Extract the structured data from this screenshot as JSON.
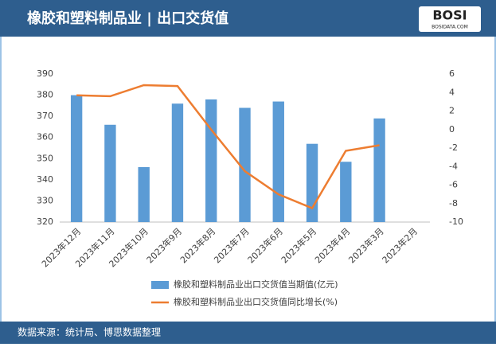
{
  "header": {
    "title": "橡胶和塑料制品业 | 出口交货值",
    "logo": "BOSI",
    "logo_sub": "BOSIDATA.COM"
  },
  "footer": {
    "source": "数据来源：统计局、博思数据整理"
  },
  "chart_data": {
    "type": "combo",
    "categories": [
      "2023年12月",
      "2023年11月",
      "2023年10月",
      "2023年9月",
      "2023年8月",
      "2023年7月",
      "2023年6月",
      "2023年5月",
      "2023年4月",
      "2023年3月",
      "2023年2月"
    ],
    "series": [
      {
        "name": "橡胶和塑料制品业出口交货值当期值(亿元)",
        "type": "bar",
        "color": "#5b9bd5",
        "axis": "y",
        "values": [
          380,
          366,
          346,
          376,
          378,
          374,
          377,
          357,
          348.5,
          369,
          null
        ]
      },
      {
        "name": "橡胶和塑料制品业出口交货值同比增长(%)",
        "type": "line",
        "color": "#ed7d31",
        "axis": "y2",
        "values": [
          3.7,
          3.6,
          4.8,
          4.7,
          0,
          -4.5,
          -7,
          -8.5,
          -2.3,
          -1.7,
          null
        ]
      }
    ],
    "ylim": [
      320,
      390
    ],
    "yticks": [
      320,
      330,
      340,
      350,
      360,
      370,
      380,
      390
    ],
    "y2lim": [
      -10,
      6
    ],
    "y2ticks": [
      -10,
      -8,
      -6,
      -4,
      -2,
      0,
      2,
      4,
      6
    ],
    "grid": false
  }
}
